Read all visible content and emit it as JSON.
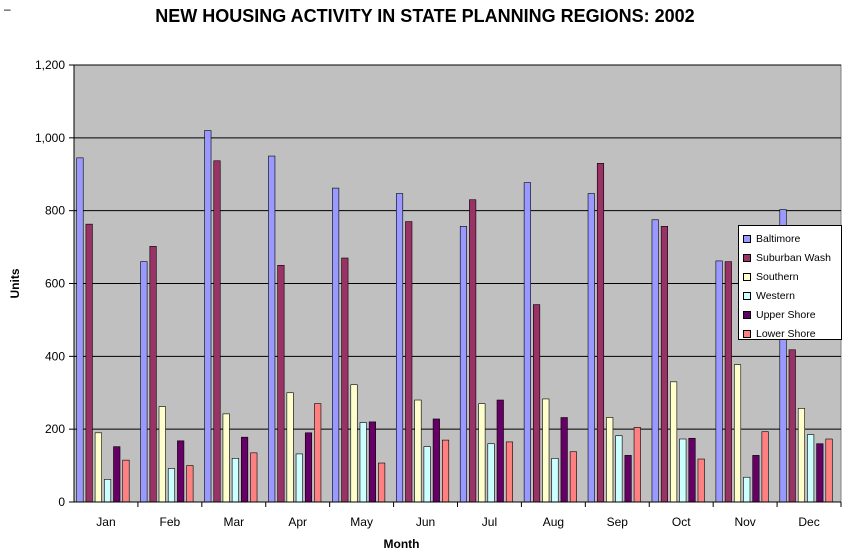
{
  "corner_mark": "–",
  "chart_data": {
    "type": "bar",
    "title": "NEW HOUSING ACTIVITY IN STATE PLANNING REGIONS:  2002",
    "xlabel": "Month",
    "ylabel": "Units",
    "ylim": [
      0,
      1200
    ],
    "yticks": [
      0,
      200,
      400,
      600,
      800,
      1000,
      1200
    ],
    "ytick_labels": [
      "0",
      "200",
      "400",
      "600",
      "800",
      "1,000",
      "1,200"
    ],
    "grid": true,
    "legend_position": "right",
    "categories": [
      "Jan",
      "Feb",
      "Mar",
      "Apr",
      "May",
      "Jun",
      "Jul",
      "Aug",
      "Sep",
      "Oct",
      "Nov",
      "Dec"
    ],
    "series": [
      {
        "name": "Baltimore",
        "color": "#9999ff",
        "values": [
          945,
          660,
          1020,
          950,
          862,
          847,
          757,
          877,
          847,
          775,
          662,
          803
        ]
      },
      {
        "name": "Suburban Wash",
        "color": "#993366",
        "values": [
          763,
          702,
          937,
          650,
          670,
          770,
          830,
          542,
          930,
          757,
          660,
          418
        ]
      },
      {
        "name": "Southern",
        "color": "#ffffcc",
        "values": [
          190,
          262,
          242,
          300,
          322,
          280,
          270,
          283,
          232,
          330,
          377,
          257
        ]
      },
      {
        "name": "Western",
        "color": "#ccffff",
        "values": [
          62,
          92,
          120,
          132,
          218,
          152,
          160,
          120,
          182,
          173,
          68,
          185
        ]
      },
      {
        "name": "Upper Shore",
        "color": "#660066",
        "values": [
          152,
          168,
          178,
          190,
          220,
          228,
          280,
          232,
          128,
          175,
          128,
          160
        ]
      },
      {
        "name": "Lower Shore",
        "color": "#ff8080",
        "values": [
          115,
          100,
          135,
          270,
          107,
          170,
          165,
          138,
          205,
          118,
          193,
          173
        ]
      }
    ]
  },
  "colors": {
    "plot_background": "#c0c0c0",
    "gridline": "#000000"
  }
}
